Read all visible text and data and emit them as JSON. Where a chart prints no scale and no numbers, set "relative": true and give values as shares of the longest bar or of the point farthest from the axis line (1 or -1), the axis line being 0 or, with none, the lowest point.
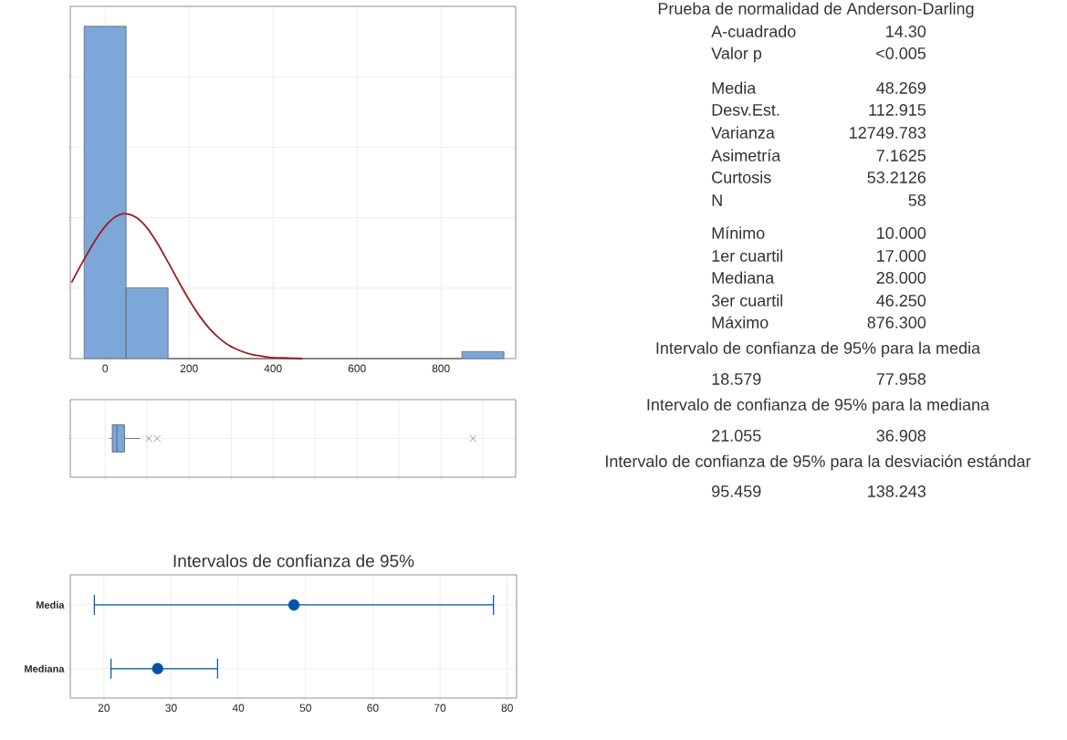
{
  "chart_data": [
    {
      "type": "histogram",
      "relative": true,
      "bins": [
        -50,
        50,
        150,
        250,
        350,
        450,
        550,
        650,
        750,
        850,
        950
      ],
      "xlim": [
        -83,
        978
      ],
      "xticks": [
        0,
        200,
        400,
        600,
        800
      ],
      "grid": true,
      "series": [
        {
          "values": [
            1,
            0.213,
            0,
            0,
            0,
            0,
            0,
            0,
            0,
            0.021
          ],
          "color": "#7da7d9"
        },
        {
          "type": "line",
          "color": "#9e1b1f",
          "x": [
            -80,
            -50,
            -25,
            0,
            25,
            48,
            75,
            100,
            125,
            150,
            175,
            200,
            225,
            250,
            275,
            300,
            325,
            350,
            375,
            400,
            425,
            470
          ],
          "values": [
            0.229,
            0.299,
            0.353,
            0.398,
            0.427,
            0.436,
            0.424,
            0.393,
            0.346,
            0.29,
            0.232,
            0.177,
            0.128,
            0.088,
            0.058,
            0.036,
            0.022,
            0.012,
            0.007,
            0.003,
            0.002,
            0
          ]
        }
      ]
    },
    {
      "type": "box",
      "orientation": "horizontal",
      "categories": [
        null
      ],
      "color": "#7da7d9",
      "boxes": [
        {
          "low": 10,
          "q1": 17,
          "median": 28,
          "q3": 46.25,
          "high": 83,
          "outliers": [
            104,
            124,
            876.3
          ]
        }
      ],
      "xlim": [
        -83,
        978
      ],
      "xticks": [
        0,
        100,
        200,
        300,
        400,
        500,
        600,
        700,
        800,
        900
      ],
      "tick_labels": false,
      "grid": true
    },
    {
      "type": "scatter",
      "title": "Intervalos de confianza de 95%",
      "orientation": "horizontal",
      "categories": [
        "Media",
        "Mediana"
      ],
      "values": [
        48.269,
        28
      ],
      "errors": [
        [
          18.579,
          77.958
        ],
        [
          21.055,
          36.908
        ]
      ],
      "color": "#0054a6",
      "marker": "circle",
      "xlim": [
        15,
        81.4
      ],
      "xticks": [
        20,
        30,
        40,
        50,
        60,
        70,
        80
      ],
      "grid": true
    },
    {
      "type": "other",
      "title": "Prueba de normalidad de Anderson-Darling",
      "annotations": [
        "A-cuadrado",
        "14.30",
        "Valor p",
        "<0.005",
        "Media",
        "48.269",
        "Desv.Est.",
        "112.915",
        "Varianza",
        "12749.783",
        "Asimetría",
        "7.1625",
        "Curtosis",
        "53.2126",
        "N",
        "58",
        "Mínimo",
        "10.000",
        "1er cuartil",
        "17.000",
        "Mediana",
        "28.000",
        "3er cuartil",
        "46.250",
        "Máximo",
        "876.300",
        "Intervalo de confianza de 95% para la media",
        "18.579",
        "77.958",
        "Intervalo de confianza de 95% para la mediana",
        "21.055",
        "36.908",
        "Intervalo de confianza de 95% para la desviación estándar",
        "95.459",
        "138.243"
      ]
    }
  ]
}
